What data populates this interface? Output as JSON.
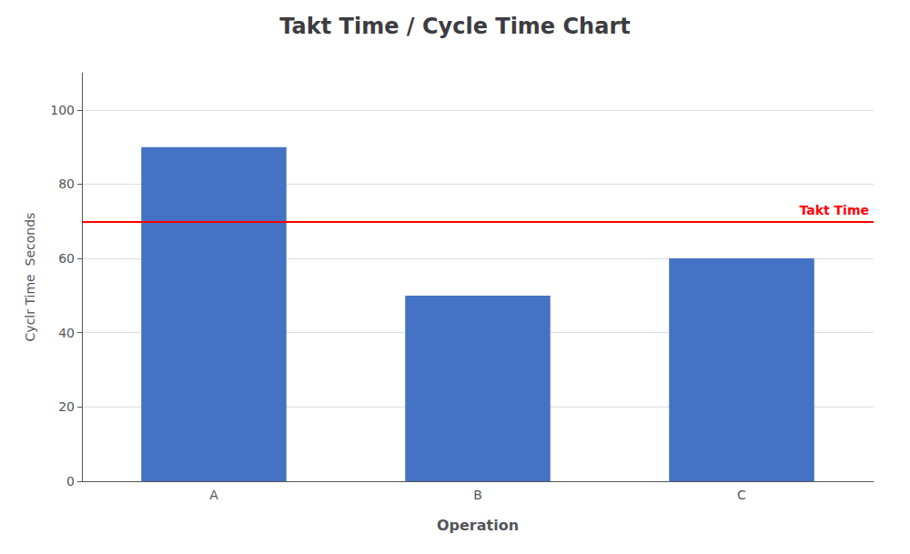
{
  "chart_data": {
    "type": "bar",
    "title": "Takt Time / Cycle Time Chart",
    "xlabel": "Operation",
    "ylabel": "Cyclr Time  Seconds",
    "categories": [
      "A",
      "B",
      "C"
    ],
    "values": [
      90,
      50,
      60
    ],
    "color": "#4472C4",
    "ylim": [
      0,
      110
    ],
    "yticks": [
      0,
      20,
      40,
      60,
      80,
      100
    ],
    "grid": true,
    "reference_lines": [
      {
        "value": 70,
        "label": "Takt Time",
        "color": "red"
      }
    ]
  }
}
